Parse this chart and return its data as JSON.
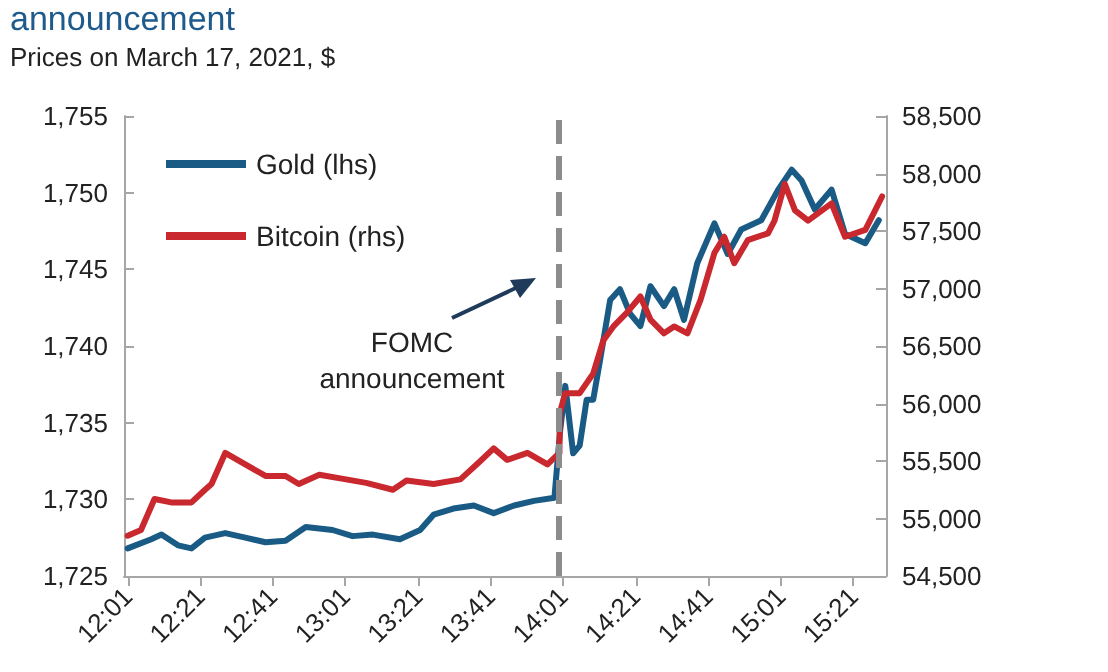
{
  "chart_data": {
    "type": "line",
    "title": "announcement",
    "subtitle": "Prices on March 17, 2021, $",
    "x": [
      12.017,
      12.125,
      12.172,
      12.248,
      12.31,
      12.372,
      12.465,
      12.557,
      12.65,
      12.742,
      12.835,
      12.958,
      13.05,
      13.143,
      13.267,
      13.36,
      13.422,
      13.513,
      13.607,
      13.698,
      13.792,
      13.883,
      13.977,
      14.002,
      14.027,
      14.063,
      14.093,
      14.125,
      14.155,
      14.187,
      14.233,
      14.278,
      14.325,
      14.372,
      14.418,
      14.48,
      14.527,
      14.572,
      14.633,
      14.712,
      14.773,
      14.835,
      14.927,
      15.005,
      15.067,
      15.112,
      15.173,
      15.25,
      15.312,
      15.405,
      15.467
    ],
    "series": [
      {
        "name": "Gold (lhs)",
        "color": "#1a5b86",
        "values": [
          1726.8,
          1727.4,
          1727.7,
          1727.0,
          1726.8,
          1727.5,
          1727.8,
          1727.5,
          1727.2,
          1727.3,
          1728.2,
          1728.0,
          1727.6,
          1727.7,
          1727.4,
          1728.0,
          1729.0,
          1729.4,
          1729.6,
          1729.1,
          1729.6,
          1729.9,
          1730.1,
          1734.3,
          1737.4,
          1733.0,
          1733.5,
          1736.5,
          1736.5,
          1739.1,
          1743.0,
          1743.7,
          1742.1,
          1741.3,
          1743.9,
          1742.6,
          1743.7,
          1741.7,
          1745.4,
          1748.0,
          1746.0,
          1747.6,
          1748.2,
          1750.2,
          1751.5,
          1750.8,
          1748.9,
          1750.2,
          1747.3,
          1746.7,
          1748.2
        ]
      },
      {
        "name": "Bitcoin (rhs)",
        "color": "#c8282e",
        "axis": "y2",
        "x": [
          12.017,
          12.078,
          12.14,
          12.217,
          12.31,
          12.372,
          12.402,
          12.465,
          12.557,
          12.65,
          12.742,
          12.803,
          12.897,
          13.02,
          13.112,
          13.235,
          13.298,
          13.422,
          13.545,
          13.637,
          13.698,
          13.76,
          13.853,
          13.945,
          14.0,
          14.002,
          14.027,
          14.093,
          14.155,
          14.202,
          14.248,
          14.31,
          14.372,
          14.418,
          14.48,
          14.527,
          14.588,
          14.648,
          14.712,
          14.757,
          14.803,
          14.865,
          14.958,
          14.988,
          15.035,
          15.082,
          15.142,
          15.25,
          15.312,
          15.405,
          15.482
        ],
        "values": [
          54850,
          54900,
          55170,
          55140,
          55140,
          55250,
          55300,
          55570,
          55470,
          55370,
          55370,
          55300,
          55380,
          55340,
          55310,
          55250,
          55330,
          55300,
          55340,
          55500,
          55610,
          55510,
          55570,
          55470,
          55570,
          55920,
          56090,
          56090,
          56260,
          56550,
          56670,
          56790,
          56930,
          56730,
          56610,
          56670,
          56610,
          56900,
          57310,
          57450,
          57220,
          57420,
          57480,
          57590,
          57910,
          57680,
          57590,
          57740,
          57450,
          57510,
          57800
        ]
      }
    ],
    "xlim": [
      12.0,
      15.5
    ],
    "xticks": [
      {
        "value": 12.017,
        "label": "12:01"
      },
      {
        "value": 12.35,
        "label": "12:21"
      },
      {
        "value": 12.683,
        "label": "12:41"
      },
      {
        "value": 13.017,
        "label": "13:01"
      },
      {
        "value": 13.35,
        "label": "13:21"
      },
      {
        "value": 13.683,
        "label": "13:41"
      },
      {
        "value": 14.017,
        "label": "14:01"
      },
      {
        "value": 14.35,
        "label": "14:21"
      },
      {
        "value": 14.683,
        "label": "14:41"
      },
      {
        "value": 15.017,
        "label": "15:01"
      },
      {
        "value": 15.35,
        "label": "15:21"
      }
    ],
    "ylim": [
      1725,
      1755
    ],
    "yticks": [
      {
        "value": 1725,
        "label": "1,725"
      },
      {
        "value": 1730,
        "label": "1,730"
      },
      {
        "value": 1735,
        "label": "1,735"
      },
      {
        "value": 1740,
        "label": "1,740"
      },
      {
        "value": 1745,
        "label": "1,745"
      },
      {
        "value": 1750,
        "label": "1,750"
      },
      {
        "value": 1755,
        "label": "1,755"
      }
    ],
    "y2lim": [
      54500,
      58500
    ],
    "y2ticks": [
      {
        "value": 54500,
        "label": "54,500"
      },
      {
        "value": 55000,
        "label": "55,000"
      },
      {
        "value": 55500,
        "label": "55,500"
      },
      {
        "value": 56000,
        "label": "56,000"
      },
      {
        "value": 56500,
        "label": "56,500"
      },
      {
        "value": 57000,
        "label": "57,000"
      },
      {
        "value": 57500,
        "label": "57,500"
      },
      {
        "value": 58000,
        "label": "58,000"
      },
      {
        "value": 58500,
        "label": "58,500"
      }
    ],
    "ref_lines": [
      {
        "axis": "x",
        "value": 14.0,
        "color": "#8c8c8c",
        "line_style": "dashed"
      }
    ],
    "annotations": [
      "FOMC\nannouncement"
    ],
    "legend": "top left",
    "grid": false,
    "marker": "none",
    "line_style": "solid"
  }
}
